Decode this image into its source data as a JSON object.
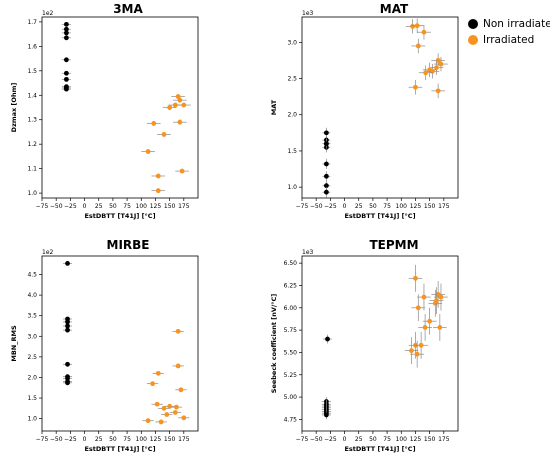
{
  "colors": {
    "non_irradiated": "#000000",
    "irradiated": "#f7931e",
    "errorbar": "#888888"
  },
  "legend": {
    "items": [
      {
        "label": "Non irradiated",
        "color": "#000000"
      },
      {
        "label": "Irradiated",
        "color": "#f7931e"
      }
    ]
  },
  "chart_data": [
    {
      "type": "scatter",
      "title": "3MA",
      "xlabel": "EstDBTT [T41J] [°C]",
      "ylabel": "Dzmax [Ohm]",
      "multiplier": "1e2",
      "xlim": [
        -75,
        200
      ],
      "ylim": [
        0.98,
        1.72
      ],
      "xticks": [
        -75,
        -50,
        -25,
        0,
        25,
        50,
        75,
        100,
        125,
        150,
        175
      ],
      "yticks": [
        1.0,
        1.1,
        1.2,
        1.3,
        1.4,
        1.5,
        1.6,
        1.7
      ],
      "ytick_labels": [
        "1.0",
        "1.1",
        "1.2",
        "1.3",
        "1.4",
        "1.5",
        "1.6",
        "1.7"
      ],
      "grid": false,
      "legend": "right, outside",
      "series": [
        {
          "name": "Non irradiated",
          "color": "#000000",
          "x": [
            -32,
            -32,
            -32,
            -32,
            -32,
            -32,
            -32,
            -32,
            -32,
            -32
          ],
          "y": [
            1.69,
            1.67,
            1.655,
            1.635,
            1.545,
            1.49,
            1.465,
            1.435,
            1.43,
            1.425
          ],
          "xerr": 8,
          "yerr": 0
        },
        {
          "name": "Irradiated",
          "color": "#f7931e",
          "x": [
            165,
            168,
            160,
            150,
            175,
            122,
            168,
            140,
            112,
            130,
            172,
            130
          ],
          "y": [
            1.395,
            1.38,
            1.36,
            1.35,
            1.36,
            1.285,
            1.29,
            1.24,
            1.17,
            1.07,
            1.09,
            1.01
          ],
          "xerr": 12,
          "yerr": 0.01
        }
      ]
    },
    {
      "type": "scatter",
      "title": "MAT",
      "xlabel": "EstDBTT [T41J] [°C]",
      "ylabel": "MAT",
      "multiplier": "1e3",
      "xlim": [
        -75,
        200
      ],
      "ylim": [
        0.85,
        3.35
      ],
      "xticks": [
        -75,
        -50,
        -25,
        0,
        25,
        50,
        75,
        100,
        125,
        150,
        175
      ],
      "yticks": [
        1.0,
        1.5,
        2.0,
        2.5,
        3.0
      ],
      "ytick_labels": [
        "1.0",
        "1.5",
        "2.0",
        "2.5",
        "3.0"
      ],
      "grid": false,
      "legend": "right, outside",
      "series": [
        {
          "name": "Non irradiated",
          "color": "#000000",
          "x": [
            -32,
            -32,
            -32,
            -32,
            -32,
            -32,
            -32,
            -32,
            -32
          ],
          "y": [
            1.75,
            1.65,
            1.6,
            1.55,
            1.32,
            1.15,
            1.02,
            0.93,
            1.6
          ],
          "xerr": 7,
          "yerr": 0.07
        },
        {
          "name": "Irradiated",
          "color": "#f7931e",
          "x": [
            120,
            128,
            140,
            130,
            165,
            170,
            162,
            150,
            155,
            143,
            125,
            165
          ],
          "y": [
            3.22,
            3.23,
            3.14,
            2.95,
            2.75,
            2.7,
            2.65,
            2.62,
            2.6,
            2.58,
            2.38,
            2.33
          ],
          "xerr": 12,
          "yerr": 0.1
        }
      ]
    },
    {
      "type": "scatter",
      "title": "MIRBE",
      "xlabel": "EstDBTT [T41J] [°C]",
      "ylabel": "MBN_RMS",
      "multiplier": "1e2",
      "xlim": [
        -75,
        200
      ],
      "ylim": [
        0.7,
        4.95
      ],
      "xticks": [
        -75,
        -50,
        -25,
        0,
        25,
        50,
        75,
        100,
        125,
        150,
        175
      ],
      "yticks": [
        1.0,
        1.5,
        2.0,
        2.5,
        3.0,
        3.5,
        4.0,
        4.5
      ],
      "ytick_labels": [
        "1.0",
        "1.5",
        "2.0",
        "2.5",
        "3.0",
        "3.5",
        "4.0",
        "4.5"
      ],
      "grid": false,
      "legend": "right, outside",
      "series": [
        {
          "name": "Non irradiated",
          "color": "#000000",
          "x": [
            -30,
            -30,
            -30,
            -30,
            -30,
            -30,
            -30,
            -30,
            -30,
            -30
          ],
          "y": [
            4.77,
            3.42,
            3.35,
            3.25,
            3.15,
            2.32,
            2.02,
            1.98,
            1.9,
            1.87
          ],
          "xerr": 8,
          "yerr": 0.03
        },
        {
          "name": "Irradiated",
          "color": "#f7931e",
          "x": [
            165,
            165,
            130,
            120,
            170,
            128,
            150,
            140,
            162,
            160,
            145,
            175,
            135,
            112
          ],
          "y": [
            3.12,
            2.28,
            2.1,
            1.85,
            1.7,
            1.35,
            1.3,
            1.25,
            1.28,
            1.15,
            1.1,
            1.02,
            0.92,
            0.95
          ],
          "xerr": 10,
          "yerr": 0.05
        }
      ]
    },
    {
      "type": "scatter",
      "title": "TEPMM",
      "xlabel": "EstDBTT [T41J] [°C]",
      "ylabel": "Seebeck coefficient [nV/°C]",
      "multiplier": "1e3",
      "xlim": [
        -75,
        200
      ],
      "ylim": [
        4.62,
        6.58
      ],
      "xticks": [
        -75,
        -50,
        -25,
        0,
        25,
        50,
        75,
        100,
        125,
        150,
        175
      ],
      "yticks": [
        4.75,
        5.0,
        5.25,
        5.5,
        5.75,
        6.0,
        6.25,
        6.5
      ],
      "ytick_labels": [
        "4.75",
        "5.00",
        "5.25",
        "5.50",
        "5.75",
        "6.00",
        "6.25",
        "6.50"
      ],
      "grid": false,
      "legend": "right, outside",
      "series": [
        {
          "name": "Non irradiated",
          "color": "#000000",
          "x": [
            -30,
            -32,
            -32,
            -32,
            -32,
            -32,
            -32,
            -32,
            -32
          ],
          "y": [
            5.65,
            4.95,
            4.92,
            4.9,
            4.88,
            4.86,
            4.84,
            4.82,
            4.8
          ],
          "xerr": 8,
          "yerr": 0.05
        },
        {
          "name": "Irradiated",
          "color": "#f7931e",
          "x": [
            125,
            165,
            140,
            170,
            160,
            162,
            130,
            150,
            168,
            142,
            125,
            135,
            128,
            118
          ],
          "y": [
            6.33,
            6.15,
            6.12,
            6.12,
            6.05,
            6.08,
            6.0,
            5.85,
            5.78,
            5.78,
            5.58,
            5.58,
            5.48,
            5.52
          ],
          "xerr": 12,
          "yerr": 0.15
        }
      ]
    }
  ]
}
